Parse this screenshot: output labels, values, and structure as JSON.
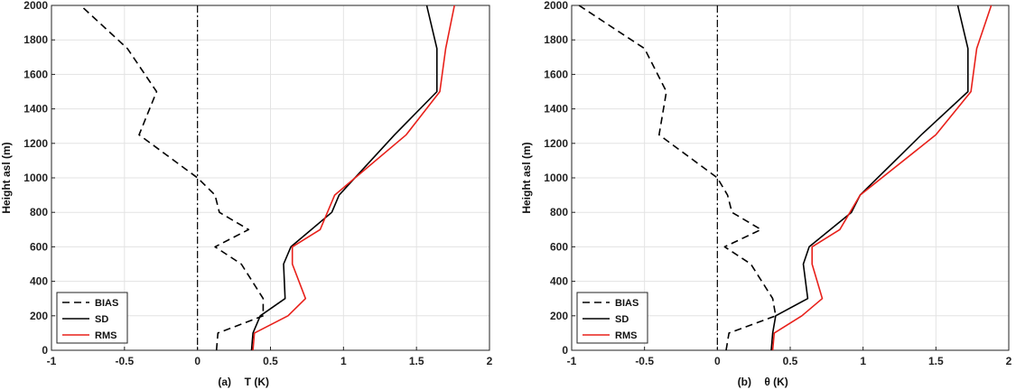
{
  "chart_data": [
    {
      "type": "line",
      "panel_label": "(a)",
      "xlabel": "T (K)",
      "ylabel": "Height asl (m)",
      "xlim": [
        -1,
        2
      ],
      "ylim": [
        0,
        2000
      ],
      "xticks": [
        "-1",
        "-0.5",
        "0",
        "0.5",
        "1",
        "1.5",
        "2"
      ],
      "yticks": [
        "0",
        "200",
        "400",
        "600",
        "800",
        "1000",
        "1200",
        "1400",
        "1600",
        "1800",
        "2000"
      ],
      "grid": true,
      "legend_position": "bottom-left",
      "reference_line_x": 0,
      "series": [
        {
          "name": "BIAS",
          "style": "dashed",
          "color": "#000000",
          "x": [
            0.13,
            0.14,
            0.45,
            0.45,
            0.3,
            0.12,
            0.35,
            0.15,
            0.12,
            0.0,
            -0.4,
            -0.28,
            -0.48,
            -0.8
          ],
          "y": [
            0,
            100,
            200,
            300,
            500,
            600,
            700,
            800,
            900,
            1000,
            1250,
            1500,
            1750,
            2000
          ]
        },
        {
          "name": "SD",
          "style": "solid",
          "color": "#000000",
          "x": [
            0.37,
            0.38,
            0.43,
            0.6,
            0.59,
            0.64,
            0.92,
            0.97,
            1.35,
            1.64,
            1.64,
            1.57
          ],
          "y": [
            0,
            100,
            200,
            300,
            500,
            600,
            800,
            900,
            1250,
            1500,
            1750,
            2000
          ]
        },
        {
          "name": "RMS",
          "style": "solid",
          "color": "#e8201a",
          "x": [
            0.38,
            0.39,
            0.62,
            0.74,
            0.65,
            0.65,
            0.84,
            0.94,
            1.43,
            1.66,
            1.7,
            1.76
          ],
          "y": [
            0,
            100,
            200,
            300,
            500,
            600,
            700,
            900,
            1250,
            1500,
            1750,
            2000
          ]
        }
      ]
    },
    {
      "type": "line",
      "panel_label": "(b)",
      "xlabel": "θ (K)",
      "ylabel": "Height asl (m)",
      "xlim": [
        -1,
        2
      ],
      "ylim": [
        0,
        2000
      ],
      "xticks": [
        "-1",
        "-0.5",
        "0",
        "0.5",
        "1",
        "1.5",
        "2"
      ],
      "yticks": [
        "0",
        "200",
        "400",
        "600",
        "800",
        "1000",
        "1200",
        "1400",
        "1600",
        "1800",
        "2000"
      ],
      "grid": true,
      "legend_position": "bottom-left",
      "reference_line_x": 0,
      "series": [
        {
          "name": "BIAS",
          "style": "dashed",
          "color": "#000000",
          "x": [
            0.06,
            0.08,
            0.4,
            0.38,
            0.23,
            0.05,
            0.3,
            0.1,
            0.07,
            0.0,
            -0.4,
            -0.35,
            -0.5,
            -0.95
          ],
          "y": [
            0,
            100,
            200,
            300,
            500,
            600,
            700,
            800,
            900,
            1000,
            1250,
            1500,
            1750,
            2000
          ]
        },
        {
          "name": "SD",
          "style": "solid",
          "color": "#000000",
          "x": [
            0.37,
            0.38,
            0.4,
            0.62,
            0.59,
            0.63,
            0.92,
            0.98,
            1.4,
            1.72,
            1.72,
            1.65
          ],
          "y": [
            0,
            100,
            200,
            300,
            500,
            600,
            800,
            900,
            1250,
            1500,
            1750,
            2000
          ]
        },
        {
          "name": "RMS",
          "style": "solid",
          "color": "#e8201a",
          "x": [
            0.38,
            0.39,
            0.58,
            0.72,
            0.65,
            0.65,
            0.84,
            0.98,
            1.5,
            1.74,
            1.78,
            1.88
          ],
          "y": [
            0,
            100,
            200,
            300,
            500,
            600,
            700,
            900,
            1250,
            1500,
            1750,
            2000
          ]
        }
      ]
    }
  ]
}
